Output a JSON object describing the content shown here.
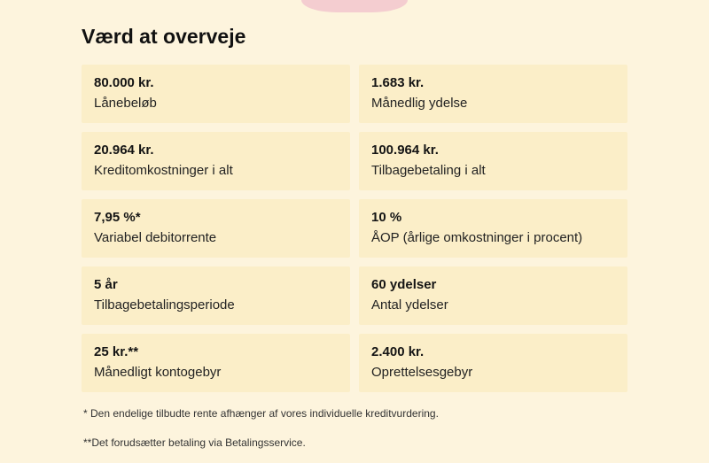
{
  "heading": "Værd at overveje",
  "rows": [
    {
      "left": {
        "value": "80.000 kr.",
        "label": "Lånebeløb"
      },
      "right": {
        "value": "1.683 kr.",
        "label": "Månedlig ydelse"
      }
    },
    {
      "left": {
        "value": "20.964 kr.",
        "label": "Kreditomkostninger i alt"
      },
      "right": {
        "value": "100.964 kr.",
        "label": "Tilbagebetaling i alt"
      }
    },
    {
      "left": {
        "value": "7,95 %*",
        "label": "Variabel debitorrente"
      },
      "right": {
        "value": "10 %",
        "label": "ÅOP (årlige omkostninger i procent)"
      }
    },
    {
      "left": {
        "value": "5 år",
        "label": "Tilbagebetalingsperiode"
      },
      "right": {
        "value": "60 ydelser",
        "label": "Antal ydelser"
      }
    },
    {
      "left": {
        "value": "25 kr.**",
        "label": "Månedligt kontogebyr"
      },
      "right": {
        "value": "2.400 kr.",
        "label": "Oprettelsesgebyr"
      }
    }
  ],
  "footnotes": [
    "* Den endelige tilbudte rente afhænger af vores individuelle kreditvurdering.",
    "**Det forudsætter betaling via Betalingsservice."
  ],
  "colors": {
    "page_bg": "#fdf4dd",
    "cell_bg": "#fbeec8",
    "text": "#1a1a1a",
    "decor": "#f3c9ce"
  }
}
